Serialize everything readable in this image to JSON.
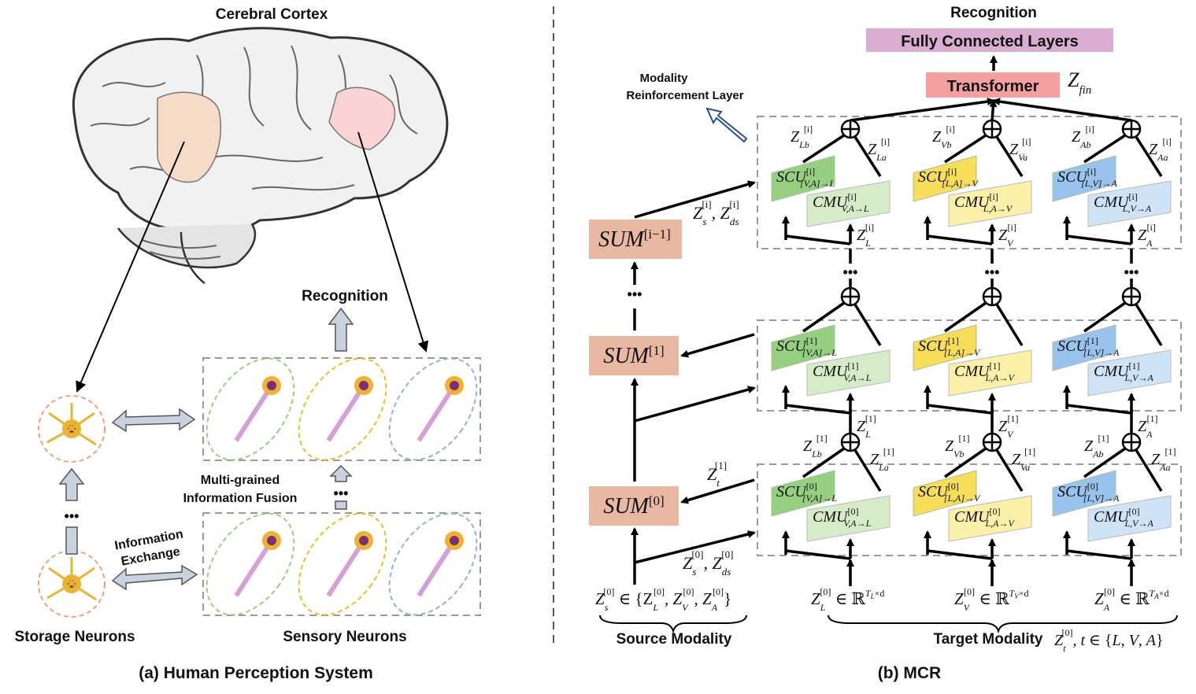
{
  "left_panel": {
    "brain_title": "Cerebral Cortex",
    "recognition": "Recognition",
    "fusion_line1": "Multi-grained",
    "fusion_line2": "Information Fusion",
    "exchange_line1": "Information",
    "exchange_line2": "Exchange",
    "storage_label": "Storage Neurons",
    "sensory_label": "Sensory Neurons",
    "caption": "(a) Human Perception System",
    "dots": "•••"
  },
  "right_panel": {
    "recognition": "Recognition",
    "fc_layers": "Fully Connected Layers",
    "transformer": "Transformer",
    "z_fin": "Z_fin",
    "mrl_line1": "Modality",
    "mrl_line2": "Reinforcement Layer",
    "sum_boxes": [
      "SUM[0]",
      "SUM[1]",
      "SUM[i−1]"
    ],
    "scu_labels": {
      "L": [
        "SCU[0]_[V,A]→L",
        "SCU[1]_[V,A]→L",
        "SCU[i]_[V,A]→L"
      ],
      "V": [
        "SCU[0]_[L,A]→V",
        "SCU[1]_[L,A]→V",
        "SCU[i]_[L,A]→V"
      ],
      "A": [
        "SCU[0]_[L,V]→A",
        "SCU[1]_[L,V]→A",
        "SCU[i]_[L,V]→A"
      ]
    },
    "cmu_labels": {
      "L": [
        "CMU[0]_V,A→L",
        "CMU[1]_V,A→L",
        "CMU[i]_V,A→L"
      ],
      "V": [
        "CMU[0]_L,A→V",
        "CMU[1]_L,A→V",
        "CMU[i]_L,A→V"
      ],
      "A": [
        "CMU[0]_L,V→A",
        "CMU[1]_L,V→A",
        "CMU[i]_L,V→A"
      ]
    },
    "z_labels": {
      "zt1": "Z_t[1]",
      "zs0_zds0": "Z_s[0], Z_ds[0]",
      "zsi_zdsi": "Z_s[i], Z_ds[i]",
      "zs0_def": "Z_s[0] ∈ {Z_L[0], Z_V[0], Z_A[0]}",
      "zl0_def": "Z_L[0] ∈ ℝ^(T_L×d)",
      "zv0_def": "Z_V[0] ∈ ℝ^(T_V×d)",
      "za0_def": "Z_A[0] ∈ ℝ^(T_A×d)"
    },
    "source_modality": "Source  Modality",
    "target_modality": "Target  Modality",
    "target_def": "Z_t[0], t ∈ {L, V, A}",
    "caption": "(b) MCR",
    "dots": "•••"
  },
  "colors": {
    "fc_fill": "#d9aed0",
    "transformer_fill": "#f4a0a0",
    "sum_fill": "#e8b8a3",
    "scu_L": "#97cf80",
    "cmu_L": "#d6ecc8",
    "scu_V": "#f7dd58",
    "cmu_V": "#fbf0a8",
    "scu_A": "#98c3ec",
    "cmu_A": "#cfe3f6",
    "brain_region_left": "#f6dcc8",
    "brain_region_right": "#fad4d4",
    "neuron_green": "#9ccf7a",
    "neuron_yellow": "#e6c120",
    "neuron_blue": "#8fb2d9",
    "storage_circle": "#f0a080"
  }
}
